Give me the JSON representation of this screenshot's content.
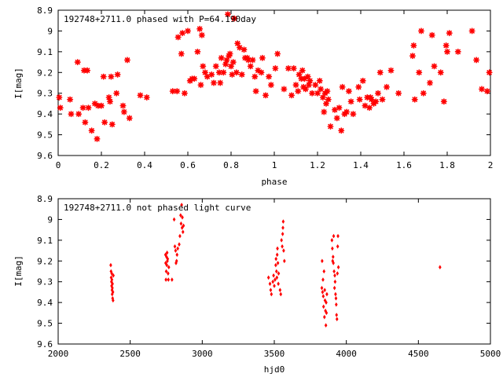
{
  "chart_data": [
    {
      "type": "scatter",
      "title": "192748+2711.0 phased with P=64.190day",
      "xlabel": "phase",
      "ylabel": "I[mag]",
      "xlim": [
        0,
        2
      ],
      "ylim": [
        9.6,
        8.9
      ],
      "y_inverted": true,
      "xticks": [
        0,
        0.2,
        0.4,
        0.6,
        0.8,
        1,
        1.2,
        1.4,
        1.6,
        1.8,
        2
      ],
      "xtick_labels": [
        "0",
        "0.2",
        "0.4",
        "0.6",
        "0.8",
        "1",
        "1.2",
        "1.4",
        "1.6",
        "1.8",
        "2"
      ],
      "yticks": [
        8.9,
        9.0,
        9.1,
        9.2,
        9.3,
        9.4,
        9.5,
        9.6
      ],
      "ytick_labels": [
        "8.9",
        "9",
        "9.1",
        "9.2",
        "9.3",
        "9.4",
        "9.5",
        "9.6"
      ],
      "grid": false,
      "legend": "none",
      "marker": "star",
      "color": "#ff0000",
      "points": [
        [
          0.005,
          9.32
        ],
        [
          0.01,
          9.37
        ],
        [
          0.055,
          9.33
        ],
        [
          0.06,
          9.4
        ],
        [
          0.09,
          9.15
        ],
        [
          0.095,
          9.4
        ],
        [
          0.115,
          9.37
        ],
        [
          0.12,
          9.19
        ],
        [
          0.125,
          9.44
        ],
        [
          0.135,
          9.19
        ],
        [
          0.14,
          9.37
        ],
        [
          0.155,
          9.48
        ],
        [
          0.17,
          9.35
        ],
        [
          0.18,
          9.52
        ],
        [
          0.185,
          9.36
        ],
        [
          0.2,
          9.36
        ],
        [
          0.21,
          9.22
        ],
        [
          0.215,
          9.44
        ],
        [
          0.235,
          9.32
        ],
        [
          0.24,
          9.34
        ],
        [
          0.245,
          9.22
        ],
        [
          0.25,
          9.45
        ],
        [
          0.27,
          9.3
        ],
        [
          0.275,
          9.21
        ],
        [
          0.3,
          9.36
        ],
        [
          0.305,
          9.39
        ],
        [
          0.32,
          9.14
        ],
        [
          0.33,
          9.42
        ],
        [
          0.38,
          9.31
        ],
        [
          0.41,
          9.32
        ],
        [
          0.53,
          9.29
        ],
        [
          0.55,
          9.29
        ],
        [
          0.555,
          9.03
        ],
        [
          0.57,
          9.11
        ],
        [
          0.575,
          9.01
        ],
        [
          0.585,
          9.3
        ],
        [
          0.6,
          9.0
        ],
        [
          0.61,
          9.24
        ],
        [
          0.62,
          9.23
        ],
        [
          0.63,
          9.23
        ],
        [
          0.645,
          9.1
        ],
        [
          0.655,
          8.99
        ],
        [
          0.66,
          9.26
        ],
        [
          0.665,
          9.02
        ],
        [
          0.67,
          9.17
        ],
        [
          0.68,
          9.2
        ],
        [
          0.69,
          9.22
        ],
        [
          0.71,
          9.21
        ],
        [
          0.72,
          9.25
        ],
        [
          0.73,
          9.17
        ],
        [
          0.745,
          9.2
        ],
        [
          0.75,
          9.25
        ],
        [
          0.755,
          9.13
        ],
        [
          0.765,
          9.2
        ],
        [
          0.775,
          9.16
        ],
        [
          0.78,
          9.14
        ],
        [
          0.785,
          8.92
        ],
        [
          0.79,
          9.12
        ],
        [
          0.795,
          9.11
        ],
        [
          0.8,
          9.17
        ],
        [
          0.805,
          9.21
        ],
        [
          0.81,
          9.15
        ],
        [
          0.815,
          8.94
        ],
        [
          0.825,
          9.2
        ],
        [
          0.83,
          9.06
        ],
        [
          0.84,
          9.08
        ],
        [
          0.85,
          9.21
        ],
        [
          0.86,
          9.09
        ],
        [
          0.865,
          9.13
        ],
        [
          0.875,
          9.13
        ],
        [
          0.88,
          9.14
        ],
        [
          0.89,
          9.17
        ],
        [
          0.9,
          9.14
        ],
        [
          0.91,
          9.22
        ],
        [
          0.915,
          9.29
        ],
        [
          0.925,
          9.19
        ],
        [
          0.94,
          9.2
        ],
        [
          0.945,
          9.13
        ],
        [
          0.96,
          9.31
        ],
        [
          0.975,
          9.22
        ],
        [
          0.985,
          9.26
        ],
        [
          1.005,
          9.18
        ],
        [
          1.015,
          9.11
        ],
        [
          1.045,
          9.28
        ],
        [
          1.065,
          9.18
        ],
        [
          1.08,
          9.31
        ],
        [
          1.09,
          9.18
        ],
        [
          1.1,
          9.26
        ],
        [
          1.11,
          9.29
        ],
        [
          1.115,
          9.21
        ],
        [
          1.125,
          9.23
        ],
        [
          1.13,
          9.19
        ],
        [
          1.135,
          9.27
        ],
        [
          1.14,
          9.23
        ],
        [
          1.145,
          9.28
        ],
        [
          1.155,
          9.22
        ],
        [
          1.16,
          9.26
        ],
        [
          1.165,
          9.24
        ],
        [
          1.175,
          9.3
        ],
        [
          1.19,
          9.26
        ],
        [
          1.2,
          9.3
        ],
        [
          1.21,
          9.24
        ],
        [
          1.215,
          9.28
        ],
        [
          1.225,
          9.32
        ],
        [
          1.23,
          9.39
        ],
        [
          1.235,
          9.3
        ],
        [
          1.24,
          9.35
        ],
        [
          1.245,
          9.29
        ],
        [
          1.25,
          9.33
        ],
        [
          1.26,
          9.46
        ],
        [
          1.28,
          9.38
        ],
        [
          1.29,
          9.42
        ],
        [
          1.3,
          9.37
        ],
        [
          1.31,
          9.48
        ],
        [
          1.315,
          9.27
        ],
        [
          1.325,
          9.4
        ],
        [
          1.335,
          9.39
        ],
        [
          1.345,
          9.29
        ],
        [
          1.355,
          9.34
        ],
        [
          1.365,
          9.4
        ],
        [
          1.39,
          9.27
        ],
        [
          1.395,
          9.33
        ],
        [
          1.41,
          9.24
        ],
        [
          1.42,
          9.36
        ],
        [
          1.43,
          9.32
        ],
        [
          1.44,
          9.37
        ],
        [
          1.445,
          9.32
        ],
        [
          1.45,
          9.33
        ],
        [
          1.46,
          9.35
        ],
        [
          1.47,
          9.34
        ],
        [
          1.48,
          9.3
        ],
        [
          1.49,
          9.2
        ],
        [
          1.5,
          9.33
        ],
        [
          1.52,
          9.27
        ],
        [
          1.54,
          9.19
        ],
        [
          1.575,
          9.3
        ],
        [
          1.64,
          9.12
        ],
        [
          1.645,
          9.07
        ],
        [
          1.65,
          9.33
        ],
        [
          1.67,
          9.2
        ],
        [
          1.68,
          9.0
        ],
        [
          1.69,
          9.3
        ],
        [
          1.72,
          9.25
        ],
        [
          1.73,
          9.02
        ],
        [
          1.74,
          9.17
        ],
        [
          1.77,
          9.2
        ],
        [
          1.785,
          9.34
        ],
        [
          1.795,
          9.07
        ],
        [
          1.8,
          9.1
        ],
        [
          1.81,
          9.01
        ],
        [
          1.85,
          9.1
        ],
        [
          1.915,
          9.0
        ],
        [
          1.935,
          9.14
        ],
        [
          1.96,
          9.28
        ],
        [
          1.985,
          9.29
        ],
        [
          1.995,
          9.2
        ]
      ]
    },
    {
      "type": "scatter",
      "title": "192748+2711.0 not phased light curve",
      "xlabel": "hjd0",
      "ylabel": "I[mag]",
      "xlim": [
        2000,
        5000
      ],
      "ylim": [
        9.6,
        8.9
      ],
      "y_inverted": true,
      "xticks": [
        2000,
        2500,
        3000,
        3500,
        4000,
        4500,
        5000
      ],
      "xtick_labels": [
        "2000",
        "2500",
        "3000",
        "3500",
        "4000",
        "4500",
        "5000"
      ],
      "yticks": [
        8.9,
        9.0,
        9.1,
        9.2,
        9.3,
        9.4,
        9.5,
        9.6
      ],
      "ytick_labels": [
        "8.9",
        "9",
        "9.1",
        "9.2",
        "9.3",
        "9.4",
        "9.5",
        "9.6"
      ],
      "grid": false,
      "legend": "none",
      "marker": "diamond",
      "color": "#ff0000",
      "points": [
        [
          2365,
          9.22
        ],
        [
          2367,
          9.25
        ],
        [
          2368,
          9.28
        ],
        [
          2370,
          9.3
        ],
        [
          2371,
          9.32
        ],
        [
          2372,
          9.26
        ],
        [
          2373,
          9.29
        ],
        [
          2374,
          9.34
        ],
        [
          2375,
          9.36
        ],
        [
          2376,
          9.33
        ],
        [
          2377,
          9.31
        ],
        [
          2378,
          9.38
        ],
        [
          2380,
          9.35
        ],
        [
          2381,
          9.39
        ],
        [
          2383,
          9.27
        ],
        [
          2745,
          9.17
        ],
        [
          2746,
          9.21
        ],
        [
          2748,
          9.29
        ],
        [
          2750,
          9.25
        ],
        [
          2752,
          9.18
        ],
        [
          2754,
          9.22
        ],
        [
          2756,
          9.16
        ],
        [
          2758,
          9.2
        ],
        [
          2760,
          9.19
        ],
        [
          2763,
          9.26
        ],
        [
          2765,
          9.29
        ],
        [
          2768,
          9.23
        ],
        [
          2790,
          9.29
        ],
        [
          2805,
          9.0
        ],
        [
          2810,
          9.13
        ],
        [
          2815,
          9.15
        ],
        [
          2818,
          9.21
        ],
        [
          2822,
          9.2
        ],
        [
          2825,
          9.17
        ],
        [
          2830,
          9.14
        ],
        [
          2840,
          9.12
        ],
        [
          2845,
          9.08
        ],
        [
          2850,
          8.98
        ],
        [
          2853,
          9.02
        ],
        [
          2857,
          8.93
        ],
        [
          2860,
          9.04
        ],
        [
          2862,
          8.99
        ],
        [
          2866,
          9.06
        ],
        [
          2870,
          9.03
        ],
        [
          3460,
          9.28
        ],
        [
          3470,
          9.31
        ],
        [
          3475,
          9.34
        ],
        [
          3480,
          9.36
        ],
        [
          3490,
          9.3
        ],
        [
          3495,
          9.27
        ],
        [
          3500,
          9.32
        ],
        [
          3505,
          9.29
        ],
        [
          3510,
          9.22
        ],
        [
          3512,
          9.19
        ],
        [
          3515,
          9.25
        ],
        [
          3518,
          9.28
        ],
        [
          3520,
          9.17
        ],
        [
          3522,
          9.14
        ],
        [
          3525,
          9.21
        ],
        [
          3528,
          9.31
        ],
        [
          3530,
          9.26
        ],
        [
          3540,
          9.34
        ],
        [
          3545,
          9.36
        ],
        [
          3550,
          9.1
        ],
        [
          3555,
          9.13
        ],
        [
          3558,
          9.07
        ],
        [
          3560,
          9.04
        ],
        [
          3562,
          9.01
        ],
        [
          3565,
          9.15
        ],
        [
          3570,
          9.2
        ],
        [
          3830,
          9.33
        ],
        [
          3832,
          9.2
        ],
        [
          3835,
          9.35
        ],
        [
          3838,
          9.29
        ],
        [
          3840,
          9.37
        ],
        [
          3842,
          9.42
        ],
        [
          3845,
          9.25
        ],
        [
          3848,
          9.47
        ],
        [
          3850,
          9.34
        ],
        [
          3852,
          9.39
        ],
        [
          3855,
          9.44
        ],
        [
          3858,
          9.51
        ],
        [
          3860,
          9.4
        ],
        [
          3862,
          9.45
        ],
        [
          3865,
          9.36
        ],
        [
          3900,
          9.1
        ],
        [
          3903,
          9.14
        ],
        [
          3905,
          9.2
        ],
        [
          3908,
          9.18
        ],
        [
          3910,
          9.21
        ],
        [
          3912,
          9.08
        ],
        [
          3915,
          9.25
        ],
        [
          3918,
          9.33
        ],
        [
          3920,
          9.27
        ],
        [
          3922,
          9.3
        ],
        [
          3925,
          9.36
        ],
        [
          3928,
          9.38
        ],
        [
          3930,
          9.41
        ],
        [
          3932,
          9.46
        ],
        [
          3935,
          9.48
        ],
        [
          3938,
          9.26
        ],
        [
          3940,
          9.13
        ],
        [
          3942,
          9.08
        ],
        [
          3945,
          9.23
        ],
        [
          4650,
          9.23
        ]
      ]
    }
  ]
}
